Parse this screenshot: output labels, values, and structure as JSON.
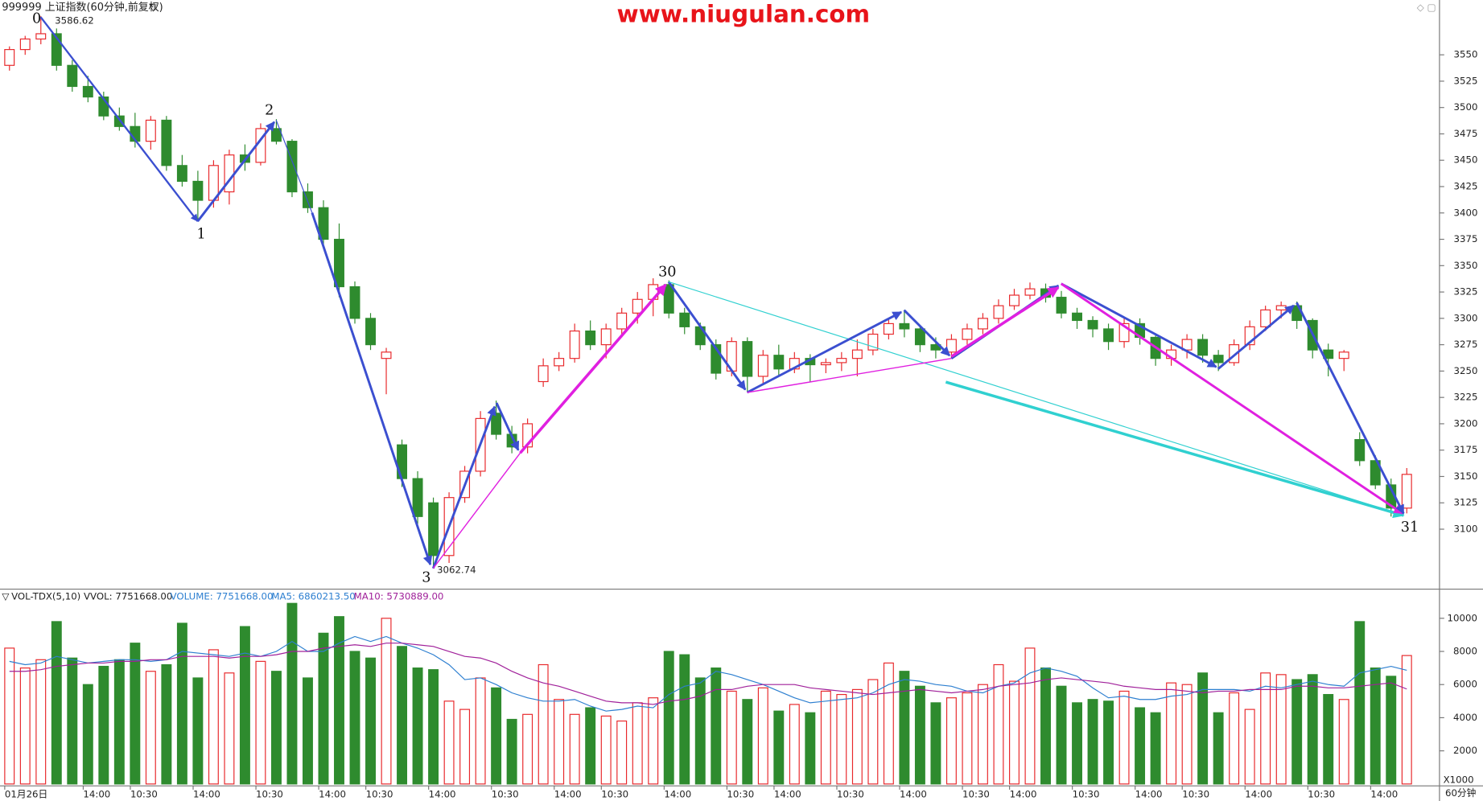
{
  "chart_data": {
    "type": "candlestick",
    "title": "999999 上证指数(60分钟,前复权)",
    "watermark": "www.niugulan.com",
    "period": "60分钟",
    "up_color": "#e8282b",
    "down_color": "#2e8b2e",
    "categories": [
      "01月26日",
      null,
      null,
      null,
      null,
      "14:00",
      null,
      null,
      "10:30",
      null,
      null,
      null,
      "14:00",
      null,
      null,
      null,
      "10:30",
      null,
      null,
      null,
      "14:00",
      null,
      null,
      "10:30",
      null,
      null,
      null,
      "14:00",
      null,
      null,
      null,
      "10:30",
      null,
      null,
      null,
      "14:00",
      null,
      null,
      "10:30",
      null,
      null,
      null,
      "14:00",
      null,
      null,
      null,
      "10:30",
      null,
      null,
      "14:00",
      null,
      null,
      null,
      "10:30",
      null,
      null,
      null,
      "14:00",
      null,
      null,
      null,
      "10:30",
      null,
      null,
      "14:00",
      null,
      null,
      null,
      "10:30",
      null,
      null,
      null,
      "14:00",
      null,
      null,
      "10:30",
      null,
      null,
      null,
      "14:00",
      null,
      null,
      null,
      "10:30",
      null,
      null,
      null,
      "14:00",
      null,
      null
    ],
    "candles": [
      [
        3540,
        3558,
        3535,
        3555
      ],
      [
        3555,
        3568,
        3550,
        3565
      ],
      [
        3565,
        3586.62,
        3560,
        3570
      ],
      [
        3570,
        3575,
        3535,
        3540
      ],
      [
        3540,
        3545,
        3515,
        3520
      ],
      [
        3520,
        3530,
        3505,
        3510
      ],
      [
        3510,
        3515,
        3488,
        3492
      ],
      [
        3492,
        3500,
        3478,
        3482
      ],
      [
        3482,
        3495,
        3462,
        3468
      ],
      [
        3468,
        3492,
        3460,
        3488
      ],
      [
        3488,
        3492,
        3440,
        3445
      ],
      [
        3445,
        3455,
        3425,
        3430
      ],
      [
        3430,
        3440,
        3392,
        3412
      ],
      [
        3412,
        3450,
        3405,
        3445
      ],
      [
        3420,
        3460,
        3408,
        3455
      ],
      [
        3455,
        3465,
        3440,
        3448
      ],
      [
        3448,
        3485,
        3445,
        3480
      ],
      [
        3480,
        3489,
        3465,
        3468
      ],
      [
        3468,
        3470,
        3415,
        3420
      ],
      [
        3420,
        3428,
        3400,
        3405
      ],
      [
        3405,
        3412,
        3370,
        3375
      ],
      [
        3375,
        3390,
        3320,
        3330
      ],
      [
        3330,
        3335,
        3295,
        3300
      ],
      [
        3300,
        3305,
        3270,
        3275
      ],
      [
        3262,
        3272,
        3228,
        3268
      ],
      [
        3180,
        3185,
        3140,
        3148
      ],
      [
        3148,
        3155,
        3105,
        3112
      ],
      [
        3125,
        3130,
        3062.74,
        3075
      ],
      [
        3075,
        3135,
        3068,
        3130
      ],
      [
        3130,
        3160,
        3125,
        3155
      ],
      [
        3155,
        3212,
        3150,
        3205
      ],
      [
        3210,
        3222,
        3185,
        3190
      ],
      [
        3190,
        3198,
        3172,
        3178
      ],
      [
        3178,
        3205,
        3172,
        3200
      ],
      [
        3240,
        3262,
        3235,
        3255
      ],
      [
        3255,
        3268,
        3250,
        3262
      ],
      [
        3262,
        3295,
        3258,
        3288
      ],
      [
        3288,
        3298,
        3270,
        3275
      ],
      [
        3275,
        3295,
        3262,
        3290
      ],
      [
        3290,
        3310,
        3282,
        3305
      ],
      [
        3305,
        3325,
        3295,
        3318
      ],
      [
        3318,
        3338,
        3302,
        3332
      ],
      [
        3332,
        3336,
        3300,
        3305
      ],
      [
        3305,
        3310,
        3285,
        3292
      ],
      [
        3292,
        3296,
        3270,
        3275
      ],
      [
        3275,
        3280,
        3242,
        3248
      ],
      [
        3250,
        3282,
        3245,
        3278
      ],
      [
        3278,
        3282,
        3230,
        3245
      ],
      [
        3245,
        3270,
        3238,
        3265
      ],
      [
        3265,
        3275,
        3245,
        3252
      ],
      [
        3252,
        3268,
        3248,
        3262
      ],
      [
        3262,
        3266,
        3240,
        3256
      ],
      [
        3256,
        3262,
        3248,
        3258
      ],
      [
        3258,
        3268,
        3250,
        3262
      ],
      [
        3262,
        3280,
        3245,
        3270
      ],
      [
        3270,
        3290,
        3265,
        3285
      ],
      [
        3285,
        3300,
        3280,
        3295
      ],
      [
        3295,
        3308,
        3282,
        3290
      ],
      [
        3290,
        3292,
        3268,
        3275
      ],
      [
        3275,
        3282,
        3262,
        3270
      ],
      [
        3268,
        3285,
        3262,
        3280
      ],
      [
        3280,
        3295,
        3275,
        3290
      ],
      [
        3290,
        3305,
        3285,
        3300
      ],
      [
        3300,
        3318,
        3295,
        3312
      ],
      [
        3312,
        3328,
        3308,
        3322
      ],
      [
        3322,
        3334,
        3318,
        3328
      ],
      [
        3328,
        3333,
        3315,
        3320
      ],
      [
        3320,
        3326,
        3300,
        3305
      ],
      [
        3305,
        3310,
        3290,
        3298
      ],
      [
        3298,
        3302,
        3282,
        3290
      ],
      [
        3290,
        3295,
        3270,
        3278
      ],
      [
        3278,
        3300,
        3272,
        3295
      ],
      [
        3295,
        3300,
        3275,
        3282
      ],
      [
        3282,
        3285,
        3255,
        3262
      ],
      [
        3262,
        3275,
        3255,
        3270
      ],
      [
        3270,
        3285,
        3262,
        3280
      ],
      [
        3280,
        3285,
        3258,
        3265
      ],
      [
        3265,
        3270,
        3250,
        3258
      ],
      [
        3258,
        3280,
        3255,
        3275
      ],
      [
        3275,
        3298,
        3270,
        3292
      ],
      [
        3292,
        3312,
        3288,
        3308
      ],
      [
        3308,
        3316,
        3300,
        3312
      ],
      [
        3312,
        3316,
        3290,
        3298
      ],
      [
        3298,
        3300,
        3262,
        3270
      ],
      [
        3270,
        3276,
        3245,
        3262
      ],
      [
        3262,
        3270,
        3250,
        3268
      ],
      [
        3185,
        3192,
        3160,
        3165
      ],
      [
        3165,
        3170,
        3138,
        3142
      ],
      [
        3142,
        3148,
        3112,
        3120
      ],
      [
        3120,
        3158,
        3115,
        3152
      ]
    ],
    "ylim": [
      3044,
      3602
    ],
    "yticks": [
      3100,
      3125,
      3150,
      3175,
      3200,
      3225,
      3250,
      3275,
      3300,
      3325,
      3350,
      3375,
      3400,
      3425,
      3450,
      3475,
      3500,
      3525,
      3550
    ],
    "annotations": {
      "wave_labels": [
        "0",
        "1",
        "2",
        "3",
        "30",
        "31"
      ],
      "high": 3586.62,
      "low": 3062.74
    },
    "volume": {
      "indicator": "VOL-TDX(5,10) VVOL: 7751668.00",
      "volume_label": "VOLUME: 7751668.00",
      "ma5_label": "MA5: 6860213.50",
      "ma10_label": "MA10: 5730889.00",
      "ma5_color": "#2d7fd0",
      "ma10_color": "#a0209a",
      "unit": "X1000",
      "values": [
        8200,
        7000,
        7500,
        9800,
        7600,
        6000,
        7100,
        7500,
        8500,
        6800,
        7200,
        9700,
        6400,
        8100,
        6700,
        9500,
        7400,
        6800,
        10900,
        6400,
        9100,
        10100,
        8000,
        7600,
        10000,
        8300,
        7000,
        6900,
        5000,
        4500,
        6400,
        5800,
        3900,
        4200,
        7200,
        5100,
        4200,
        4600,
        4100,
        3800,
        4900,
        5200,
        8000,
        7800,
        6400,
        7000,
        5600,
        5100,
        5800,
        4400,
        4800,
        4300,
        5600,
        5400,
        5700,
        6300,
        7300,
        6800,
        5900,
        4900,
        5200,
        5500,
        6000,
        7200,
        6200,
        8200,
        7000,
        5900,
        4900,
        5100,
        5000,
        5600,
        4600,
        4300,
        6100,
        6000,
        6700,
        4300,
        5500,
        4500,
        6700,
        6600,
        6300,
        6600,
        5400,
        5100,
        9800,
        7000,
        6500,
        7751.668
      ],
      "ma5": [
        7400,
        7200,
        7300,
        7700,
        7500,
        7300,
        7400,
        7500,
        7500,
        7400,
        7500,
        8000,
        7900,
        7800,
        7700,
        7900,
        7700,
        8000,
        8600,
        8000,
        8000,
        8500,
        8900,
        8600,
        8900,
        8500,
        8200,
        7800,
        7200,
        6300,
        6400,
        6000,
        5500,
        5200,
        5000,
        5000,
        5100,
        4700,
        4400,
        4500,
        4700,
        4600,
        5400,
        5900,
        6100,
        6800,
        6600,
        6300,
        6000,
        5600,
        5200,
        4900,
        5000,
        5100,
        5200,
        5500,
        6000,
        6300,
        6200,
        6000,
        5900,
        5600,
        5500,
        5900,
        6100,
        6700,
        7000,
        6800,
        6500,
        5800,
        5200,
        5300,
        5100,
        5100,
        5300,
        5400,
        5700,
        5700,
        5700,
        5600,
        5900,
        5800,
        6000,
        6200,
        6000,
        5900,
        6700,
        6900,
        7100,
        6860.2135
      ],
      "ma10": [
        6800,
        6800,
        6900,
        7100,
        7200,
        7300,
        7300,
        7400,
        7400,
        7500,
        7500,
        7700,
        7700,
        7700,
        7600,
        7700,
        7700,
        7800,
        8000,
        8000,
        8200,
        8300,
        8400,
        8300,
        8500,
        8500,
        8400,
        8300,
        8000,
        7700,
        7600,
        7300,
        6800,
        6400,
        6100,
        5900,
        5600,
        5300,
        5000,
        4900,
        4900,
        4800,
        5000,
        5100,
        5300,
        5700,
        5700,
        5900,
        6000,
        6000,
        6000,
        5800,
        5700,
        5600,
        5500,
        5400,
        5500,
        5600,
        5700,
        5600,
        5500,
        5600,
        5700,
        5900,
        6000,
        6100,
        6300,
        6400,
        6300,
        6200,
        6100,
        5900,
        5800,
        5700,
        5700,
        5600,
        5500,
        5600,
        5600,
        5700,
        5700,
        5700,
        5900,
        5900,
        5800,
        5800,
        5900,
        6000,
        6100,
        5730.889
      ],
      "ylim": [
        0,
        11700
      ],
      "yticks": [
        2000,
        4000,
        6000,
        8000,
        10000
      ]
    }
  }
}
